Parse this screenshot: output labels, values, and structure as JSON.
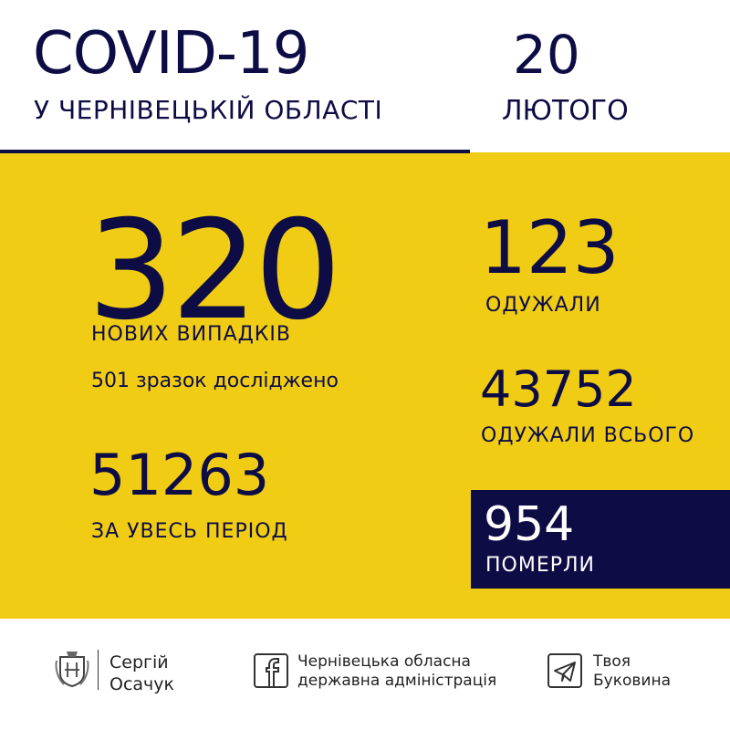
{
  "header": {
    "title": "COVID-19",
    "subtitle": "У ЧЕРНІВЕЦЬКІЙ ОБЛАСТІ",
    "date_day": "20",
    "date_month": "ЛЮТОГО"
  },
  "stats": {
    "new_cases": "320",
    "new_cases_label": "НОВИХ ВИПАДКІВ",
    "tests": "501 зразок досліджено",
    "total_cases": "51263",
    "total_cases_label": "ЗА УВЕСЬ ПЕРІОД",
    "recovered": "123",
    "recovered_label": "ОДУЖАЛИ",
    "recovered_total": "43752",
    "recovered_total_label": "ОДУЖАЛИ ВСЬОГО",
    "deaths": "954",
    "deaths_label": "ПОМЕРЛИ"
  },
  "footer": {
    "person_line1": "Сергій",
    "person_line2": "Осачук",
    "facebook_line1": "Чернівецька обласна",
    "facebook_line2": "державна адміністрація",
    "telegram_line1": "Твоя",
    "telegram_line2": "Буковина"
  },
  "colors": {
    "yellow": "#f0cd14",
    "navy": "#0e0c45"
  }
}
